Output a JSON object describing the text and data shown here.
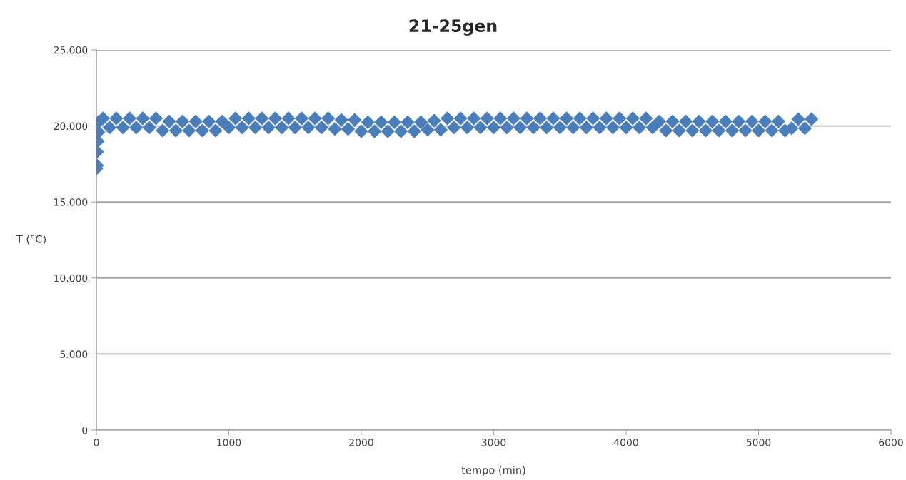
{
  "chart_data": {
    "type": "scatter",
    "title": "21-25gen",
    "xlabel": "tempo (min)",
    "ylabel": "T (°C)",
    "x": [
      0,
      5,
      5,
      10,
      15,
      20,
      50,
      100,
      150,
      200,
      250,
      300,
      350,
      400,
      450,
      500,
      550,
      600,
      650,
      700,
      750,
      800,
      850,
      900,
      950,
      1000,
      1050,
      1100,
      1150,
      1200,
      1250,
      1300,
      1350,
      1400,
      1450,
      1500,
      1550,
      1600,
      1650,
      1700,
      1750,
      1800,
      1850,
      1900,
      1950,
      2000,
      2050,
      2100,
      2150,
      2200,
      2250,
      2300,
      2350,
      2400,
      2450,
      2500,
      2550,
      2600,
      2650,
      2700,
      2750,
      2800,
      2850,
      2900,
      2950,
      3000,
      3050,
      3100,
      3150,
      3200,
      3250,
      3300,
      3350,
      3400,
      3450,
      3500,
      3550,
      3600,
      3650,
      3700,
      3750,
      3800,
      3850,
      3900,
      3950,
      4000,
      4050,
      4100,
      4150,
      4200,
      4250,
      4300,
      4350,
      4400,
      4450,
      4500,
      4550,
      4600,
      4650,
      4700,
      4750,
      4800,
      4850,
      4900,
      4950,
      5000,
      5050,
      5100,
      5150,
      5200,
      5250,
      5300,
      5350,
      5400
    ],
    "series": [
      {
        "color": "#4a7ebb",
        "values": [
          17200,
          17400,
          18300,
          19000,
          19600,
          20300,
          20500,
          19900,
          20500,
          19900,
          20500,
          19900,
          20500,
          19900,
          20500,
          19700,
          20300,
          19700,
          20300,
          19700,
          20300,
          19700,
          20300,
          19700,
          20300,
          19900,
          20500,
          19900,
          20500,
          19900,
          20500,
          19900,
          20500,
          19900,
          20500,
          19900,
          20500,
          19900,
          20500,
          19900,
          20500,
          19800,
          20400,
          19800,
          20400,
          19650,
          20250,
          19650,
          20250,
          19650,
          20250,
          19650,
          20250,
          19650,
          20250,
          19750,
          20350,
          19750,
          20500,
          19900,
          20500,
          19900,
          20500,
          19900,
          20500,
          19900,
          20500,
          19900,
          20500,
          19900,
          20500,
          19900,
          20500,
          19900,
          20500,
          19900,
          20500,
          19900,
          20500,
          19900,
          20500,
          19900,
          20500,
          19900,
          20500,
          19900,
          20500,
          19900,
          20500,
          19900,
          20300,
          19700,
          20300,
          19700,
          20300,
          19700,
          20300,
          19700,
          20300,
          19700,
          20300,
          19700,
          20300,
          19700,
          20300,
          19700,
          20300,
          19700,
          20300,
          19700,
          19850,
          20450,
          19850,
          20450
        ]
      }
    ],
    "xlim": [
      0,
      6000
    ],
    "xticks": [
      0,
      1000,
      2000,
      3000,
      4000,
      5000,
      6000
    ],
    "ylim": [
      0,
      25000
    ],
    "yticks": [
      0,
      {
        "value": 5000,
        "label": "5.000"
      },
      {
        "value": 10000,
        "label": "10.000"
      },
      {
        "value": 15000,
        "label": "15.000"
      },
      {
        "value": 20000,
        "label": "20.000"
      },
      {
        "value": 25000,
        "label": "25.000"
      }
    ],
    "grid": "y",
    "marker": "diamond"
  }
}
